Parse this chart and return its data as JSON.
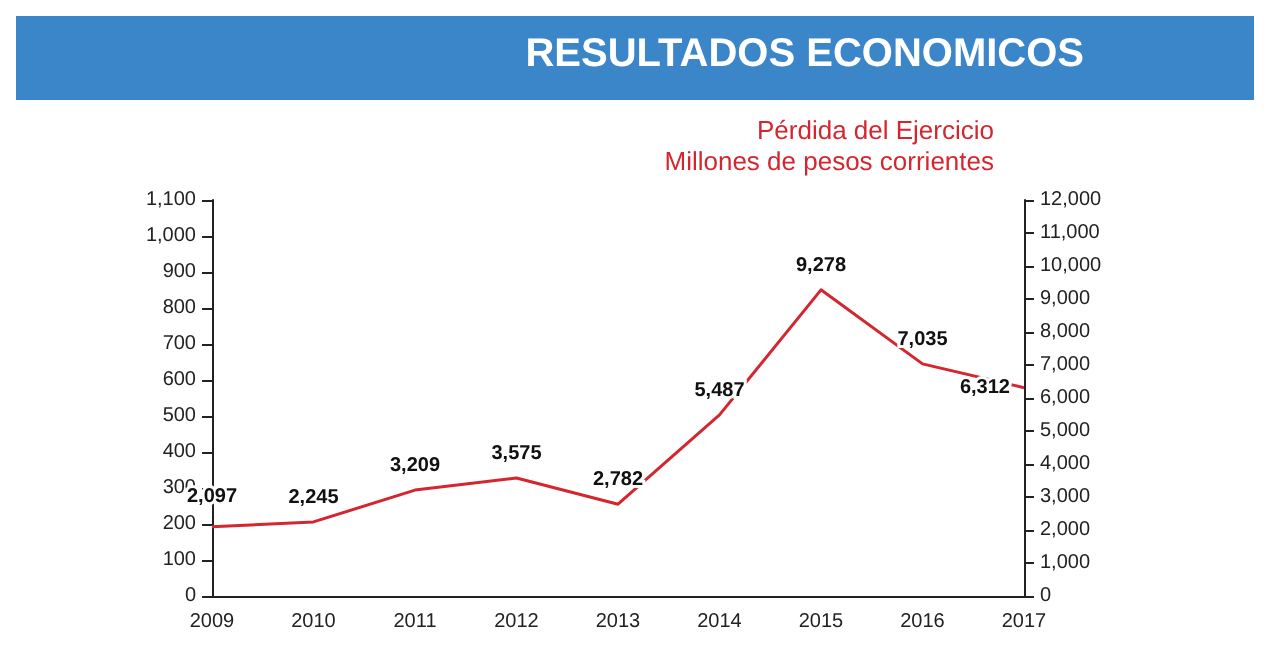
{
  "chart_data": {
    "type": "line",
    "title": "RESULTADOS ECONOMICOS",
    "categories": [
      "2009",
      "2010",
      "2011",
      "2012",
      "2013",
      "2014",
      "2015",
      "2016",
      "2017"
    ],
    "series": [
      {
        "name": "Pérdida del Ejercicio",
        "color": "#d3262f",
        "axis": "y2",
        "values": [
          2097,
          2245,
          3209,
          3575,
          2782,
          5487,
          9278,
          7035,
          6312
        ],
        "value_labels": [
          "2,097",
          "2,245",
          "3,209",
          "3,575",
          "2,782",
          "5,487",
          "9,278",
          "7,035",
          "6,312"
        ]
      }
    ],
    "annotations": [
      "Millones de pesos corrientes"
    ],
    "ylim": [
      0,
      1100
    ],
    "yticks": [
      0,
      100,
      200,
      300,
      400,
      500,
      600,
      700,
      800,
      900,
      {
        "value": 1000,
        "label": "1,000"
      },
      {
        "value": 1100,
        "label": "1,100"
      }
    ],
    "y2lim": [
      0,
      12000
    ],
    "y2ticks": [
      0,
      {
        "value": 1000,
        "label": "1,000"
      },
      {
        "value": 2000,
        "label": "2,000"
      },
      {
        "value": 3000,
        "label": "3,000"
      },
      {
        "value": 4000,
        "label": "4,000"
      },
      {
        "value": 5000,
        "label": "5,000"
      },
      {
        "value": 6000,
        "label": "6,000"
      },
      {
        "value": 7000,
        "label": "7,000"
      },
      {
        "value": 8000,
        "label": "8,000"
      },
      {
        "value": 9000,
        "label": "9,000"
      },
      {
        "value": 10000,
        "label": "10,000"
      },
      {
        "value": 11000,
        "label": "11,000"
      },
      {
        "value": 12000,
        "label": "12,000"
      }
    ],
    "legend": "top right",
    "marker": "none",
    "grid": false
  }
}
